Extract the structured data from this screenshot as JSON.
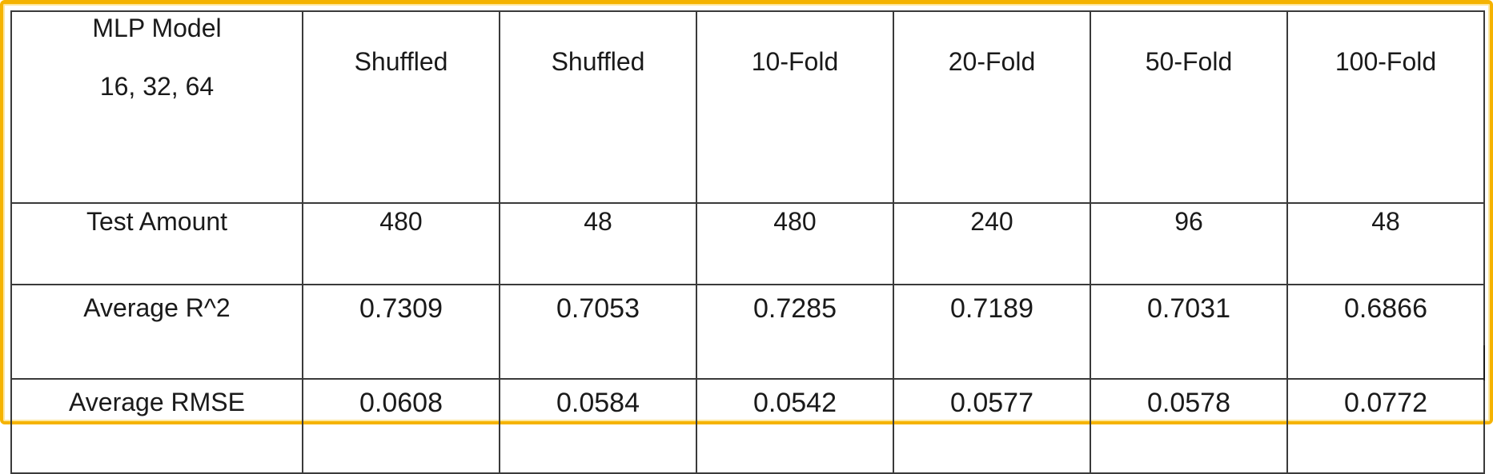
{
  "table": {
    "model_label_line1": "MLP Model",
    "model_label_line2": "16, 32, 64",
    "columns": [
      "Shuffled",
      "Shuffled",
      "10-Fold",
      "20-Fold",
      "50-Fold",
      "100-Fold"
    ],
    "rows": [
      {
        "label": "Test Amount",
        "values": [
          "480",
          "48",
          "480",
          "240",
          "96",
          "48"
        ]
      },
      {
        "label": "Average R^2",
        "values": [
          "0.7309",
          "0.7053",
          "0.7285",
          "0.7189",
          "0.7031",
          "0.6866"
        ]
      },
      {
        "label": "Average RMSE",
        "values": [
          "0.0608",
          "0.0584",
          "0.0542",
          "0.0577",
          "0.0578",
          "0.0772"
        ]
      }
    ]
  },
  "colors": {
    "frame_border": "#f5b301",
    "grid_lines": "#3a3a3a",
    "text": "#1a1a1a"
  }
}
